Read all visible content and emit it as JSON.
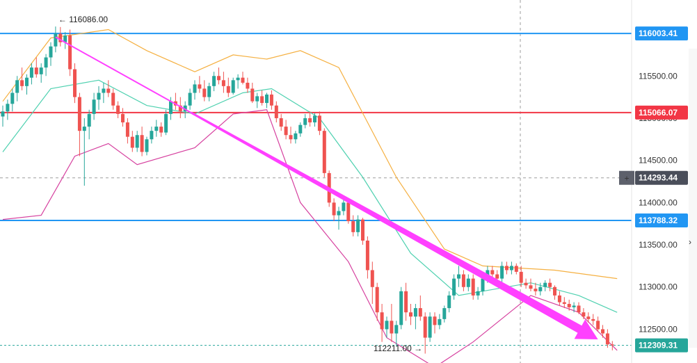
{
  "chart_data": {
    "type": "candlestick",
    "title": "",
    "xlabel": "",
    "ylabel": "",
    "ylim": [
      112100,
      116400
    ],
    "price_axis": {
      "ticks": [
        112500,
        113000,
        113500,
        114000,
        114500,
        115000,
        115500
      ],
      "tick_labels": [
        "112500.00",
        "113000.00",
        "113500.00",
        "114000.00",
        "114500.00",
        "115000.00",
        "115500.00"
      ]
    },
    "horizontal_levels": [
      {
        "value": 116003.41,
        "label": "116003.41",
        "color": "#2196f3"
      },
      {
        "value": 115066.07,
        "label": "115066.07",
        "color": "#f23645"
      },
      {
        "value": 113788.32,
        "label": "113788.32",
        "color": "#2196f3"
      }
    ],
    "crosshair": {
      "value": 114293.44,
      "label": "114293.44",
      "plus_glyph": "+"
    },
    "last_price": {
      "value": 112309.31,
      "label": "112309.31"
    },
    "annotations": {
      "high": {
        "value": 116086.0,
        "label": "116086.00",
        "arrow": "←"
      },
      "low": {
        "value": 112211.0,
        "label": "112211.00",
        "arrow": "→"
      }
    },
    "trend_arrow": {
      "color": "#ff40ff",
      "start_price": 115960,
      "end_price": 112380
    },
    "colors": {
      "up": "#26a69a",
      "down": "#ef5350",
      "bb_upper": "#f5b041",
      "bb_middle": "#4fd1b0",
      "bb_lower": "#d6409f"
    },
    "candles_ohlc": [
      [
        115020,
        115150,
        114900,
        115080
      ],
      [
        115080,
        115220,
        114980,
        115170
      ],
      [
        115170,
        115350,
        115080,
        115300
      ],
      [
        115300,
        115500,
        115200,
        115450
      ],
      [
        115450,
        115600,
        115330,
        115380
      ],
      [
        115380,
        115520,
        115280,
        115480
      ],
      [
        115480,
        115650,
        115400,
        115600
      ],
      [
        115600,
        115720,
        115480,
        115520
      ],
      [
        115520,
        115650,
        115420,
        115600
      ],
      [
        115600,
        115760,
        115500,
        115720
      ],
      [
        115720,
        115900,
        115620,
        115850
      ],
      [
        115850,
        116086,
        115780,
        116000
      ],
      [
        116000,
        116080,
        115850,
        115900
      ],
      [
        115900,
        116020,
        115820,
        115980
      ],
      [
        115980,
        116050,
        115500,
        115580
      ],
      [
        115580,
        115650,
        115180,
        115250
      ],
      [
        115250,
        115300,
        114550,
        114850
      ],
      [
        114850,
        115000,
        114200,
        114900
      ],
      [
        114900,
        115100,
        114750,
        115050
      ],
      [
        115050,
        115300,
        114980,
        115220
      ],
      [
        115220,
        115380,
        115100,
        115300
      ],
      [
        115300,
        115420,
        115180,
        115350
      ],
      [
        115350,
        115450,
        115250,
        115300
      ],
      [
        115300,
        115350,
        115100,
        115150
      ],
      [
        115150,
        115200,
        115000,
        115050
      ],
      [
        115050,
        115120,
        114900,
        114950
      ],
      [
        114950,
        115000,
        114700,
        114780
      ],
      [
        114780,
        114850,
        114600,
        114650
      ],
      [
        114650,
        114850,
        114600,
        114800
      ],
      [
        114800,
        114900,
        114550,
        114600
      ],
      [
        114600,
        114780,
        114560,
        114750
      ],
      [
        114750,
        114900,
        114700,
        114850
      ],
      [
        114850,
        114980,
        114780,
        114900
      ],
      [
        114900,
        114950,
        114780,
        114830
      ],
      [
        114830,
        115100,
        114800,
        115050
      ],
      [
        115050,
        115250,
        114980,
        115200
      ],
      [
        115200,
        115300,
        115100,
        115150
      ],
      [
        115150,
        115250,
        115000,
        115080
      ],
      [
        115080,
        115200,
        115000,
        115150
      ],
      [
        115150,
        115350,
        115100,
        115300
      ],
      [
        115300,
        115450,
        115220,
        115400
      ],
      [
        115400,
        115500,
        115300,
        115350
      ],
      [
        115350,
        115450,
        115200,
        115250
      ],
      [
        115250,
        115420,
        115200,
        115380
      ],
      [
        115380,
        115550,
        115320,
        115500
      ],
      [
        115500,
        115600,
        115400,
        115450
      ],
      [
        115450,
        115550,
        115300,
        115380
      ],
      [
        115380,
        115480,
        115250,
        115300
      ],
      [
        115300,
        115480,
        115280,
        115450
      ],
      [
        115450,
        115520,
        115350,
        115480
      ],
      [
        115480,
        115550,
        115400,
        115420
      ],
      [
        115420,
        115480,
        115300,
        115350
      ],
      [
        115350,
        115420,
        115180,
        115200
      ],
      [
        115200,
        115300,
        115120,
        115260
      ],
      [
        115260,
        115330,
        115150,
        115180
      ],
      [
        115180,
        115300,
        115120,
        115280
      ],
      [
        115280,
        115330,
        115100,
        115150
      ],
      [
        115150,
        115200,
        114950,
        115000
      ],
      [
        115000,
        115050,
        114850,
        114900
      ],
      [
        114900,
        114980,
        114750,
        114800
      ],
      [
        114800,
        114900,
        114700,
        114750
      ],
      [
        114750,
        114850,
        114700,
        114820
      ],
      [
        114820,
        114950,
        114780,
        114920
      ],
      [
        114920,
        115050,
        114880,
        115000
      ],
      [
        115000,
        115080,
        114900,
        114950
      ],
      [
        114950,
        115060,
        114900,
        115030
      ],
      [
        115030,
        115080,
        114800,
        114850
      ],
      [
        114850,
        114880,
        114300,
        114350
      ],
      [
        114350,
        114380,
        113950,
        114000
      ],
      [
        114000,
        114050,
        113780,
        113850
      ],
      [
        113850,
        113950,
        113680,
        113900
      ],
      [
        113900,
        114050,
        113850,
        114000
      ],
      [
        114000,
        114020,
        113750,
        113780
      ],
      [
        113780,
        113850,
        113600,
        113650
      ],
      [
        113650,
        113850,
        113600,
        113800
      ],
      [
        113800,
        113820,
        113500,
        113550
      ],
      [
        113550,
        113600,
        113100,
        113200
      ],
      [
        113200,
        113300,
        112800,
        113000
      ],
      [
        113000,
        113050,
        112600,
        112700
      ],
      [
        112700,
        112800,
        112350,
        112500
      ],
      [
        112500,
        112650,
        112400,
        112600
      ],
      [
        112600,
        112800,
        112350,
        112450
      ],
      [
        112450,
        112600,
        112300,
        112550
      ],
      [
        112550,
        113000,
        112500,
        112950
      ],
      [
        112950,
        113050,
        112600,
        112700
      ],
      [
        112700,
        112800,
        112550,
        112650
      ],
      [
        112650,
        112800,
        112500,
        112750
      ],
      [
        112750,
        112900,
        112600,
        112650
      ],
      [
        112650,
        112700,
        112211,
        112400
      ],
      [
        112400,
        112700,
        112350,
        112650
      ],
      [
        112650,
        112700,
        112450,
        112550
      ],
      [
        112550,
        112680,
        112500,
        112620
      ],
      [
        112620,
        112780,
        112580,
        112750
      ],
      [
        112750,
        112950,
        112700,
        112900
      ],
      [
        112900,
        113150,
        112850,
        113100
      ],
      [
        113100,
        113250,
        113000,
        113150
      ],
      [
        113150,
        113200,
        112950,
        113000
      ],
      [
        113000,
        113150,
        112950,
        113100
      ],
      [
        113100,
        113150,
        112850,
        112900
      ],
      [
        112900,
        113000,
        112850,
        112950
      ],
      [
        112950,
        113150,
        112900,
        113100
      ],
      [
        113100,
        113250,
        113050,
        113200
      ],
      [
        113200,
        113250,
        113100,
        113150
      ],
      [
        113150,
        113200,
        113050,
        113100
      ],
      [
        113100,
        113300,
        113050,
        113250
      ],
      [
        113250,
        113300,
        113150,
        113200
      ],
      [
        113200,
        113300,
        113150,
        113250
      ],
      [
        113250,
        113280,
        113150,
        113180
      ],
      [
        113180,
        113250,
        113000,
        113050
      ],
      [
        113050,
        113100,
        112980,
        113020
      ],
      [
        113020,
        113100,
        112950,
        112980
      ],
      [
        112980,
        113050,
        112900,
        112950
      ],
      [
        112950,
        113050,
        112900,
        113000
      ],
      [
        113000,
        113080,
        112950,
        113050
      ],
      [
        113050,
        113100,
        112950,
        113000
      ],
      [
        113000,
        113020,
        112850,
        112900
      ],
      [
        112900,
        112950,
        112780,
        112820
      ],
      [
        112820,
        112880,
        112750,
        112800
      ],
      [
        112800,
        112850,
        112720,
        112760
      ],
      [
        112760,
        112820,
        112700,
        112780
      ],
      [
        112780,
        112820,
        112680,
        112700
      ],
      [
        112700,
        112750,
        112620,
        112650
      ],
      [
        112650,
        112700,
        112580,
        112620
      ],
      [
        112620,
        112680,
        112550,
        112600
      ],
      [
        112600,
        112650,
        112480,
        112500
      ],
      [
        112500,
        112550,
        112400,
        112450
      ],
      [
        112450,
        112500,
        112280,
        112320
      ],
      [
        112320,
        112360,
        112250,
        112309.31
      ]
    ],
    "bollinger": {
      "upper": [
        [
          0,
          115200
        ],
        [
          10,
          115950
        ],
        [
          22,
          116050
        ],
        [
          30,
          115800
        ],
        [
          40,
          115550
        ],
        [
          48,
          115750
        ],
        [
          55,
          115700
        ],
        [
          62,
          115800
        ],
        [
          70,
          115600
        ],
        [
          82,
          114300
        ],
        [
          92,
          113450
        ],
        [
          100,
          113250
        ],
        [
          115,
          113200
        ],
        [
          128,
          113100
        ]
      ],
      "middle": [
        [
          0,
          114600
        ],
        [
          10,
          115350
        ],
        [
          20,
          115450
        ],
        [
          30,
          115150
        ],
        [
          40,
          115050
        ],
        [
          50,
          115300
        ],
        [
          56,
          115350
        ],
        [
          66,
          115000
        ],
        [
          75,
          114300
        ],
        [
          85,
          113400
        ],
        [
          95,
          112900
        ],
        [
          110,
          113050
        ],
        [
          120,
          112900
        ],
        [
          128,
          112700
        ]
      ],
      "lower": [
        [
          0,
          113800
        ],
        [
          8,
          113850
        ],
        [
          15,
          114550
        ],
        [
          22,
          114700
        ],
        [
          28,
          114450
        ],
        [
          40,
          114650
        ],
        [
          48,
          115050
        ],
        [
          55,
          115100
        ],
        [
          62,
          114000
        ],
        [
          72,
          113300
        ],
        [
          80,
          112400
        ],
        [
          90,
          112050
        ],
        [
          98,
          112350
        ],
        [
          110,
          112900
        ],
        [
          120,
          112700
        ],
        [
          128,
          112250
        ]
      ]
    }
  }
}
